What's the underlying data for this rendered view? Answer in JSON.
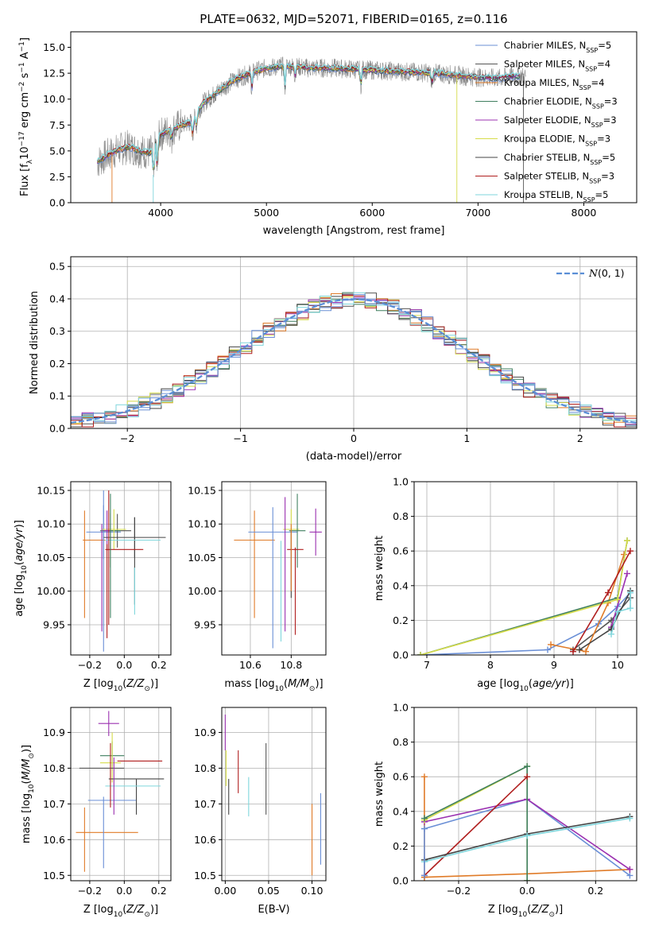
{
  "figure_title": "PLATE=0632, MJD=52071, FIBERID=0165, z=0.116",
  "colors": {
    "chabrier_miles": "#6a8fd6",
    "salpeter_miles": "#555555",
    "kroupa_miles": "#e07b28",
    "chabrier_elodie": "#3f7f5f",
    "salpeter_elodie": "#9b30b0",
    "kroupa_elodie": "#d6dc4a",
    "chabrier_stelib": "#444444",
    "salpeter_stelib": "#b01e1e",
    "kroupa_stelib": "#7fd6dc",
    "data": "#888888",
    "normal_curve": "#5b8fd6",
    "grid": "#b0b0b0"
  },
  "chart_data": [
    {
      "id": "spectrum",
      "type": "line",
      "xlabel": "wavelength [Angstrom, rest frame]",
      "ylabel": "Flux [f_λ 10^-17 erg cm^-2 s^-1 A^-1]",
      "xlim": [
        3150,
        8500
      ],
      "ylim": [
        0,
        16.5
      ],
      "xticks": [
        4000,
        5000,
        6000,
        7000,
        8000
      ],
      "yticks": [
        0.0,
        2.5,
        5.0,
        7.5,
        10.0,
        12.5,
        15.0
      ],
      "grid": false,
      "legend": "upper right",
      "series": [
        {
          "name": "Chabrier MILES, N_SSP=5",
          "color_key": "chabrier_miles"
        },
        {
          "name": "Salpeter MILES, N_SSP=4",
          "color_key": "salpeter_miles"
        },
        {
          "name": "Kroupa MILES, N_SSP=4",
          "color_key": "kroupa_miles"
        },
        {
          "name": "Chabrier ELODIE, N_SSP=3",
          "color_key": "chabrier_elodie"
        },
        {
          "name": "Salpeter ELODIE, N_SSP=3",
          "color_key": "salpeter_elodie"
        },
        {
          "name": "Kroupa ELODIE, N_SSP=3",
          "color_key": "kroupa_elodie"
        },
        {
          "name": "Chabrier STELIB, N_SSP=5",
          "color_key": "chabrier_stelib"
        },
        {
          "name": "Salpeter STELIB, N_SSP=3",
          "color_key": "salpeter_stelib"
        },
        {
          "name": "Kroupa STELIB, N_SSP=5",
          "color_key": "kroupa_stelib"
        }
      ],
      "continuum": {
        "x": [
          3400,
          3500,
          3600,
          3700,
          3800,
          3900,
          4000,
          4100,
          4200,
          4300,
          4400,
          4500,
          4600,
          4700,
          4800,
          4900,
          5000,
          5200,
          5400,
          5600,
          5800,
          6000,
          6200,
          6400,
          6600,
          6800,
          7000,
          7200,
          7300
        ],
        "y": [
          3.9,
          4.6,
          5.1,
          5.4,
          5.0,
          4.8,
          6.6,
          7.1,
          7.5,
          7.8,
          9.6,
          10.4,
          11.2,
          11.9,
          12.3,
          12.7,
          13.0,
          13.2,
          13.0,
          13.0,
          12.9,
          12.8,
          12.7,
          12.6,
          12.5,
          12.3,
          12.1,
          12.0,
          12.2
        ]
      },
      "data_range": [
        3400,
        7450
      ]
    },
    {
      "id": "residuals",
      "type": "line",
      "xlabel": "(data-model)/error",
      "ylabel": "Normed distribution",
      "xlim": [
        -2.5,
        2.5
      ],
      "ylim": [
        0,
        0.53
      ],
      "xticks": [
        -2,
        -1,
        0,
        1,
        2
      ],
      "yticks": [
        0.0,
        0.1,
        0.2,
        0.3,
        0.4,
        0.5
      ],
      "grid": true,
      "legend": "upper right",
      "normal_label": "N(0,1)",
      "bin_width": 0.1,
      "x_start": -2.5
    },
    {
      "id": "age_vs_Z",
      "type": "scatter",
      "xlabel": "Z [log10(Z/Z_sun)]",
      "ylabel": "age [log10(age/yr)]",
      "xlim": [
        -0.31,
        0.27
      ],
      "ylim": [
        9.905,
        10.163
      ],
      "xticks": [
        -0.2,
        0.0,
        0.2
      ],
      "yticks": [
        9.95,
        10.0,
        10.05,
        10.1,
        10.15
      ],
      "grid": true,
      "points": [
        {
          "color_key": "kroupa_miles",
          "x": -0.08,
          "xerr": 0.16,
          "y": 10.076,
          "yerr": 0.04
        },
        {
          "color_key": "kroupa_miles",
          "x": -0.23,
          "xerr": 0.0,
          "y": 10.04,
          "yerr": 0.08
        },
        {
          "color_key": "chabrier_miles",
          "x": -0.12,
          "xerr": 0.1,
          "y": 10.088,
          "yerr": 0.04
        },
        {
          "color_key": "chabrier_miles",
          "x": -0.12,
          "xerr": 0.0,
          "y": 10.03,
          "yerr": 0.12
        },
        {
          "color_key": "salpeter_miles",
          "x": -0.04,
          "xerr": 0.08,
          "y": 10.09,
          "yerr": 0.025
        },
        {
          "color_key": "chabrier_elodie",
          "x": -0.08,
          "xerr": 0.06,
          "y": 10.09,
          "yerr": 0.055
        },
        {
          "color_key": "kroupa_elodie",
          "x": -0.06,
          "xerr": 0.07,
          "y": 10.092,
          "yerr": 0.03
        },
        {
          "color_key": "salpeter_elodie",
          "x": -0.1,
          "xerr": 0.02,
          "y": 10.09,
          "yerr": 0.03
        },
        {
          "color_key": "chabrier_stelib",
          "x": 0.06,
          "xerr": 0.18,
          "y": 10.08,
          "yerr": 0.03
        },
        {
          "color_key": "chabrier_stelib",
          "x": 0.06,
          "xerr": 0.0,
          "y": 10.045,
          "yerr": 0.065
        },
        {
          "color_key": "salpeter_stelib",
          "x": 0.0,
          "xerr": 0.11,
          "y": 10.062,
          "yerr": 0.0
        },
        {
          "color_key": "salpeter_stelib",
          "x": -0.1,
          "xerr": 0.0,
          "y": 10.0,
          "yerr": 0.07
        },
        {
          "color_key": "kroupa_stelib",
          "x": 0.05,
          "xerr": 0.16,
          "y": 10.076,
          "yerr": 0.0
        },
        {
          "color_key": "kroupa_stelib",
          "x": 0.06,
          "xerr": 0.0,
          "y": 10.0,
          "yerr": 0.035
        },
        {
          "color_key": "salpeter_stelib",
          "x": -0.09,
          "xerr": 0.0,
          "y": 10.05,
          "yerr": 0.1
        },
        {
          "color_key": "salpeter_elodie",
          "x": -0.13,
          "xerr": 0.0,
          "y": 10.02,
          "yerr": 0.08
        },
        {
          "color_key": "chabrier_elodie",
          "x": -0.08,
          "xerr": 0.0,
          "y": 10.03,
          "yerr": 0.07
        }
      ]
    },
    {
      "id": "age_vs_mass",
      "type": "scatter",
      "xlabel": "mass [log10(M/M_sun)]",
      "xlim": [
        10.46,
        10.97
      ],
      "ylim": [
        9.905,
        10.163
      ],
      "xticks": [
        10.6,
        10.8
      ],
      "yticks": [
        9.95,
        10.0,
        10.05,
        10.1,
        10.15
      ],
      "grid": true,
      "points": [
        {
          "color_key": "kroupa_miles",
          "x": 10.62,
          "xerr": 0.1,
          "y": 10.076,
          "yerr": 0.0
        },
        {
          "color_key": "kroupa_miles",
          "x": 10.62,
          "xerr": 0.0,
          "y": 10.04,
          "yerr": 0.08
        },
        {
          "color_key": "chabrier_miles",
          "x": 10.71,
          "xerr": 0.12,
          "y": 10.088,
          "yerr": 0.0
        },
        {
          "color_key": "chabrier_miles",
          "x": 10.71,
          "xerr": 0.0,
          "y": 10.02,
          "yerr": 0.105
        },
        {
          "color_key": "salpeter_elodie",
          "x": 10.92,
          "xerr": 0.03,
          "y": 10.088,
          "yerr": 0.035
        },
        {
          "color_key": "kroupa_elodie",
          "x": 10.8,
          "xerr": 0.04,
          "y": 10.092,
          "yerr": 0.03
        },
        {
          "color_key": "chabrier_elodie",
          "x": 10.83,
          "xerr": 0.04,
          "y": 10.09,
          "yerr": 0.055
        },
        {
          "color_key": "salpeter_stelib",
          "x": 10.82,
          "xerr": 0.04,
          "y": 10.062,
          "yerr": 0.0
        },
        {
          "color_key": "salpeter_stelib",
          "x": 10.82,
          "xerr": 0.0,
          "y": 10.0,
          "yerr": 0.065
        },
        {
          "color_key": "kroupa_stelib",
          "x": 10.75,
          "xerr": 0.0,
          "y": 10.0,
          "yerr": 0.075
        },
        {
          "color_key": "salpeter_elodie",
          "x": 10.77,
          "xerr": 0.0,
          "y": 10.04,
          "yerr": 0.1
        },
        {
          "color_key": "chabrier_stelib",
          "x": 10.8,
          "xerr": 0.0,
          "y": 10.04,
          "yerr": 0.05
        },
        {
          "color_key": "kroupa_miles",
          "x": 10.8,
          "xerr": 0.0,
          "y": 10.05,
          "yerr": 0.05
        }
      ]
    },
    {
      "id": "mass_weight_vs_age",
      "type": "line",
      "xlabel": "age [log10(age/yr)]",
      "ylabel": "mass weight",
      "xlim": [
        6.8,
        10.3
      ],
      "ylim": [
        0.0,
        1.0
      ],
      "xticks": [
        7,
        8,
        9,
        10
      ],
      "yticks": [
        0.0,
        0.2,
        0.4,
        0.6,
        0.8,
        1.0
      ],
      "grid": true,
      "series": [
        {
          "color_key": "chabrier_miles",
          "x": [
            6.9,
            8.9,
            9.7,
            10.0,
            10.2
          ],
          "y": [
            0.0,
            0.03,
            0.18,
            0.28,
            0.36
          ]
        },
        {
          "color_key": "salpeter_miles",
          "x": [
            9.3,
            9.9,
            10.2
          ],
          "y": [
            0.03,
            0.2,
            0.33
          ]
        },
        {
          "color_key": "kroupa_miles",
          "x": [
            8.95,
            9.5,
            9.85,
            10.1
          ],
          "y": [
            0.06,
            0.02,
            0.3,
            0.58
          ]
        },
        {
          "color_key": "chabrier_elodie",
          "x": [
            6.9,
            10.0,
            10.15
          ],
          "y": [
            0.0,
            0.33,
            0.66
          ]
        },
        {
          "color_key": "salpeter_elodie",
          "x": [
            9.9,
            10.15
          ],
          "y": [
            0.16,
            0.47
          ]
        },
        {
          "color_key": "kroupa_elodie",
          "x": [
            6.9,
            10.0,
            10.15
          ],
          "y": [
            0.0,
            0.32,
            0.66
          ]
        },
        {
          "color_key": "chabrier_stelib",
          "x": [
            9.4,
            9.9,
            10.2
          ],
          "y": [
            0.03,
            0.15,
            0.37
          ]
        },
        {
          "color_key": "salpeter_stelib",
          "x": [
            9.3,
            9.85,
            10.2
          ],
          "y": [
            0.02,
            0.36,
            0.6
          ]
        },
        {
          "color_key": "kroupa_stelib",
          "x": [
            9.9,
            10.0,
            10.2,
            10.2
          ],
          "y": [
            0.12,
            0.25,
            0.27,
            0.36
          ]
        }
      ]
    },
    {
      "id": "mass_vs_Z",
      "type": "scatter",
      "xlabel": "Z [log10(Z/Z_sun)]",
      "ylabel": "mass [log10(M/M_sun)]",
      "xlim": [
        -0.31,
        0.27
      ],
      "ylim": [
        10.485,
        10.97
      ],
      "xticks": [
        -0.2,
        0.0,
        0.2
      ],
      "yticks": [
        10.5,
        10.6,
        10.7,
        10.8,
        10.9
      ],
      "grid": true,
      "points": [
        {
          "color_key": "kroupa_miles",
          "x": -0.1,
          "xerr": 0.18,
          "y": 10.62,
          "yerr": 0.0
        },
        {
          "color_key": "kroupa_miles",
          "x": -0.23,
          "xerr": 0.0,
          "y": 10.6,
          "yerr": 0.09
        },
        {
          "color_key": "chabrier_miles",
          "x": -0.07,
          "xerr": 0.14,
          "y": 10.71,
          "yerr": 0.0
        },
        {
          "color_key": "chabrier_miles",
          "x": -0.12,
          "xerr": 0.0,
          "y": 10.62,
          "yerr": 0.1
        },
        {
          "color_key": "salpeter_elodie",
          "x": -0.09,
          "xerr": 0.06,
          "y": 10.925,
          "yerr": 0.035
        },
        {
          "color_key": "chabrier_elodie",
          "x": -0.07,
          "xerr": 0.07,
          "y": 10.835,
          "yerr": 0.04
        },
        {
          "color_key": "salpeter_stelib",
          "x": 0.09,
          "xerr": 0.13,
          "y": 10.82,
          "yerr": 0.0
        },
        {
          "color_key": "kroupa_elodie",
          "x": -0.08,
          "xerr": 0.06,
          "y": 10.815,
          "yerr": 0.0
        },
        {
          "color_key": "kroupa_elodie",
          "x": -0.07,
          "xerr": 0.0,
          "y": 10.83,
          "yerr": 0.07
        },
        {
          "color_key": "chabrier_stelib",
          "x": 0.07,
          "xerr": 0.16,
          "y": 10.77,
          "yerr": 0.0
        },
        {
          "color_key": "chabrier_stelib",
          "x": 0.07,
          "xerr": 0.0,
          "y": 10.72,
          "yerr": 0.05
        },
        {
          "color_key": "kroupa_stelib",
          "x": 0.05,
          "xerr": 0.16,
          "y": 10.75,
          "yerr": 0.0
        },
        {
          "color_key": "salpeter_miles",
          "x": -0.13,
          "xerr": 0.13,
          "y": 10.8,
          "yerr": 0.0
        },
        {
          "color_key": "salpeter_elodie",
          "x": -0.06,
          "xerr": 0.0,
          "y": 10.75,
          "yerr": 0.08
        },
        {
          "color_key": "salpeter_stelib",
          "x": -0.08,
          "xerr": 0.0,
          "y": 10.78,
          "yerr": 0.09
        }
      ]
    },
    {
      "id": "mass_vs_ebv",
      "type": "scatter",
      "xlabel": "E(B-V)",
      "xlim": [
        -0.004,
        0.116
      ],
      "ylim": [
        10.485,
        10.97
      ],
      "xticks": [
        0.0,
        0.05,
        0.1
      ],
      "yticks": [
        10.5,
        10.6,
        10.7,
        10.8,
        10.9
      ],
      "grid": true,
      "points": [
        {
          "color_key": "salpeter_elodie",
          "x": 0.0,
          "xerr": 0.0,
          "y": 10.9,
          "yerr": 0.05
        },
        {
          "color_key": "kroupa_elodie",
          "x": 0.001,
          "xerr": 0.0,
          "y": 10.8,
          "yerr": 0.05
        },
        {
          "color_key": "chabrier_stelib",
          "x": 0.004,
          "xerr": 0.0,
          "y": 10.72,
          "yerr": 0.05
        },
        {
          "color_key": "salpeter_stelib",
          "x": 0.015,
          "xerr": 0.0,
          "y": 10.79,
          "yerr": 0.06
        },
        {
          "color_key": "kroupa_stelib",
          "x": 0.027,
          "xerr": 0.0,
          "y": 10.72,
          "yerr": 0.055
        },
        {
          "color_key": "salpeter_miles",
          "x": 0.047,
          "xerr": 0.0,
          "y": 10.77,
          "yerr": 0.1
        },
        {
          "color_key": "kroupa_miles",
          "x": 0.1,
          "xerr": 0.0,
          "y": 10.6,
          "yerr": 0.1
        },
        {
          "color_key": "chabrier_miles",
          "x": 0.11,
          "xerr": 0.0,
          "y": 10.63,
          "yerr": 0.1
        }
      ]
    },
    {
      "id": "mass_weight_vs_Z",
      "type": "line",
      "xlabel": "Z [log10(Z/Z_sun)]",
      "ylabel": "mass weight",
      "xlim": [
        -0.33,
        0.32
      ],
      "ylim": [
        0.0,
        1.0
      ],
      "xticks": [
        -0.2,
        0.0,
        0.2
      ],
      "yticks": [
        0.0,
        0.2,
        0.4,
        0.6,
        0.8,
        1.0
      ],
      "grid": true,
      "series": [
        {
          "color_key": "chabrier_miles",
          "x": [
            -0.3,
            0.0,
            0.3
          ],
          "y": [
            0.3,
            0.47,
            0.03
          ]
        },
        {
          "color_key": "kroupa_miles",
          "x": [
            -0.3,
            0.0,
            0.3
          ],
          "y": [
            0.02,
            0.04,
            0.065
          ]
        },
        {
          "color_key": "kroupa_miles",
          "x": [
            -0.3,
            -0.3
          ],
          "y": [
            0.02,
            0.6
          ]
        },
        {
          "color_key": "salpeter_elodie",
          "x": [
            -0.3,
            0.0,
            0.3
          ],
          "y": [
            0.34,
            0.47,
            0.065
          ]
        },
        {
          "color_key": "kroupa_elodie",
          "x": [
            -0.3,
            0.0,
            0.0
          ],
          "y": [
            0.35,
            0.66,
            0.0
          ]
        },
        {
          "color_key": "chabrier_elodie",
          "x": [
            -0.3,
            0.0,
            0.0
          ],
          "y": [
            0.36,
            0.66,
            0.0
          ]
        },
        {
          "color_key": "salpeter_stelib",
          "x": [
            -0.3,
            0.0
          ],
          "y": [
            0.03,
            0.6
          ]
        },
        {
          "color_key": "chabrier_stelib",
          "x": [
            -0.3,
            0.0,
            0.3
          ],
          "y": [
            0.12,
            0.27,
            0.37
          ]
        },
        {
          "color_key": "kroupa_stelib",
          "x": [
            -0.3,
            0.0,
            0.3
          ],
          "y": [
            0.11,
            0.26,
            0.36
          ]
        },
        {
          "color_key": "chabrier_miles",
          "x": [
            -0.3,
            -0.3
          ],
          "y": [
            0.03,
            0.3
          ]
        }
      ]
    }
  ]
}
